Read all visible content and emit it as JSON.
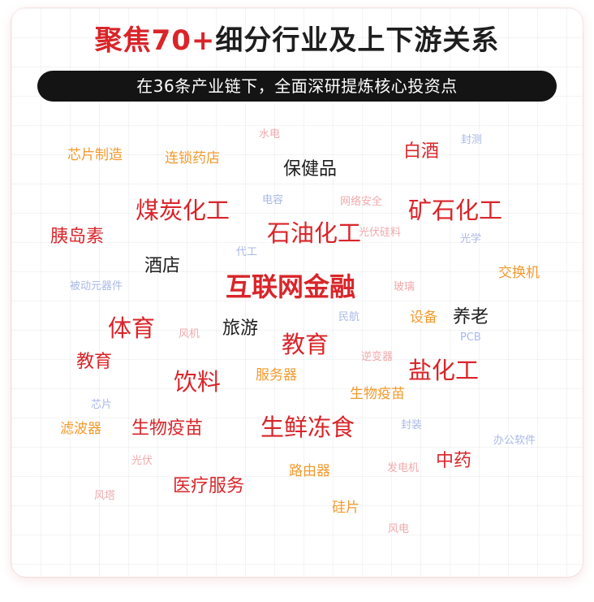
{
  "header": {
    "title_highlight": "聚焦70+",
    "title_rest": "细分行业及上下游关系",
    "subtitle": "在36条产业链下，全面深研提炼核心投资点"
  },
  "colors": {
    "red": "#d9252a",
    "orange": "#f39a2d",
    "light_pink": "#f0a9ab",
    "light_blue": "#aab8e8",
    "dark": "#1e1e1e"
  },
  "keywords": [
    {
      "text": "水电"
    },
    {
      "text": "封测"
    },
    {
      "text": "芯片制造"
    },
    {
      "text": "连锁药店"
    },
    {
      "text": "白酒"
    },
    {
      "text": "保健品"
    },
    {
      "text": "煤炭化工"
    },
    {
      "text": "电容"
    },
    {
      "text": "网络安全"
    },
    {
      "text": "矿石化工"
    },
    {
      "text": "胰岛素"
    },
    {
      "text": "石油化工"
    },
    {
      "text": "光伏硅料"
    },
    {
      "text": "光学"
    },
    {
      "text": "代工"
    },
    {
      "text": "酒店"
    },
    {
      "text": "交换机"
    },
    {
      "text": "被动元器件"
    },
    {
      "text": "互联网金融"
    },
    {
      "text": "玻璃"
    },
    {
      "text": "民航"
    },
    {
      "text": "设备"
    },
    {
      "text": "养老"
    },
    {
      "text": "体育"
    },
    {
      "text": "风机"
    },
    {
      "text": "旅游"
    },
    {
      "text": "PCB"
    },
    {
      "text": "教育"
    },
    {
      "text": "逆变器"
    },
    {
      "text": "教育"
    },
    {
      "text": "盐化工"
    },
    {
      "text": "饮料"
    },
    {
      "text": "服务器"
    },
    {
      "text": "芯片"
    },
    {
      "text": "生物疫苗"
    },
    {
      "text": "滤波器"
    },
    {
      "text": "生物疫苗"
    },
    {
      "text": "生鲜冻食"
    },
    {
      "text": "封装"
    },
    {
      "text": "办公软件"
    },
    {
      "text": "光伏"
    },
    {
      "text": "中药"
    },
    {
      "text": "路由器"
    },
    {
      "text": "发电机"
    },
    {
      "text": "风塔"
    },
    {
      "text": "医疗服务"
    },
    {
      "text": "硅片"
    },
    {
      "text": "风电"
    }
  ]
}
